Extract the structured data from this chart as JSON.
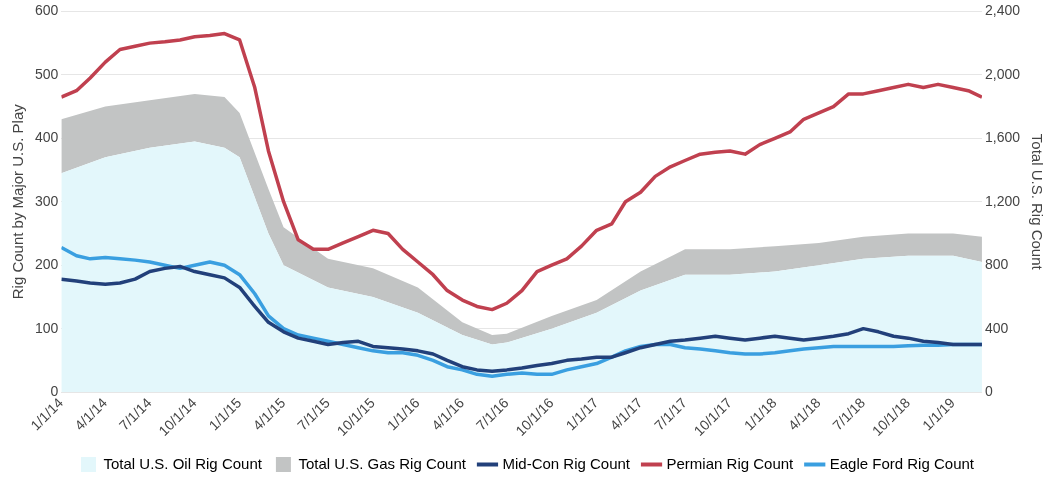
{
  "chart_data": {
    "type": "line",
    "ylabel": "Rig Count by Major U.S. Play",
    "y2label": "Total U.S. Rig Count",
    "x": [
      "2014-01-01",
      "2014-02-01",
      "2014-03-01",
      "2014-04-01",
      "2014-05-01",
      "2014-06-01",
      "2014-07-01",
      "2014-08-01",
      "2014-09-01",
      "2014-10-01",
      "2014-11-01",
      "2014-12-01",
      "2015-01-01",
      "2015-02-01",
      "2015-03-01",
      "2015-04-01",
      "2015-05-01",
      "2015-06-01",
      "2015-07-01",
      "2015-08-01",
      "2015-09-01",
      "2015-10-01",
      "2015-11-01",
      "2015-12-01",
      "2016-01-01",
      "2016-02-01",
      "2016-03-01",
      "2016-04-01",
      "2016-05-01",
      "2016-06-01",
      "2016-07-01",
      "2016-08-01",
      "2016-09-01",
      "2016-10-01",
      "2016-11-01",
      "2016-12-01",
      "2017-01-01",
      "2017-02-01",
      "2017-03-01",
      "2017-04-01",
      "2017-05-01",
      "2017-06-01",
      "2017-07-01",
      "2017-08-01",
      "2017-09-01",
      "2017-10-01",
      "2017-11-01",
      "2017-12-01",
      "2018-01-01",
      "2018-02-01",
      "2018-03-01",
      "2018-04-01",
      "2018-05-01",
      "2018-06-01",
      "2018-07-01",
      "2018-08-01",
      "2018-09-01",
      "2018-10-01",
      "2018-11-01",
      "2018-12-01",
      "2019-01-01",
      "2019-02-01",
      "2019-03-01"
    ],
    "series": [
      {
        "name": "Total U.S. Oil Rig Count",
        "type": "area",
        "axis": "y2",
        "color": "#e3f7fb",
        "x": [
          "2014-01-01",
          "2014-04-01",
          "2014-07-01",
          "2014-10-01",
          "2014-12-01",
          "2015-01-01",
          "2015-03-01",
          "2015-04-01",
          "2015-07-01",
          "2015-10-01",
          "2016-01-01",
          "2016-04-01",
          "2016-06-01",
          "2016-07-01",
          "2016-10-01",
          "2017-01-01",
          "2017-04-01",
          "2017-07-01",
          "2017-10-01",
          "2018-01-01",
          "2018-04-01",
          "2018-07-01",
          "2018-10-01",
          "2019-01-01",
          "2019-03-01"
        ],
        "values": [
          1380,
          1480,
          1540,
          1580,
          1540,
          1480,
          1000,
          800,
          660,
          600,
          500,
          360,
          300,
          312,
          400,
          500,
          640,
          740,
          740,
          760,
          800,
          840,
          860,
          860,
          820
        ]
      },
      {
        "name": "Total U.S. Gas Rig Count",
        "type": "area",
        "axis": "y2",
        "color": "#c2c4c4",
        "x": [
          "2014-01-01",
          "2014-04-01",
          "2014-07-01",
          "2014-10-01",
          "2014-12-01",
          "2015-01-01",
          "2015-03-01",
          "2015-04-01",
          "2015-07-01",
          "2015-10-01",
          "2016-01-01",
          "2016-04-01",
          "2016-06-01",
          "2016-07-01",
          "2016-10-01",
          "2017-01-01",
          "2017-04-01",
          "2017-07-01",
          "2017-10-01",
          "2018-01-01",
          "2018-04-01",
          "2018-07-01",
          "2018-10-01",
          "2019-01-01",
          "2019-03-01"
        ],
        "values": [
          340,
          320,
          300,
          300,
          320,
          280,
          280,
          240,
          180,
          180,
          160,
          80,
          60,
          56,
          80,
          80,
          120,
          160,
          160,
          160,
          140,
          140,
          140,
          140,
          160
        ]
      },
      {
        "name": "Mid-Con Rig Count",
        "type": "line",
        "color": "#22407a",
        "values": [
          178,
          175,
          172,
          170,
          172,
          178,
          190,
          195,
          198,
          190,
          185,
          180,
          165,
          135,
          110,
          95,
          85,
          80,
          75,
          78,
          80,
          72,
          70,
          68,
          65,
          60,
          50,
          40,
          35,
          33,
          35,
          38,
          42,
          45,
          50,
          52,
          55,
          55,
          62,
          70,
          75,
          80,
          82,
          85,
          88,
          85,
          82,
          85,
          88,
          85,
          82,
          85,
          88,
          92,
          100,
          95,
          88,
          85,
          80,
          78,
          75,
          75,
          75
        ]
      },
      {
        "name": "Permian Rig Count",
        "type": "line",
        "color": "#c0404f",
        "values": [
          465,
          475,
          495,
          520,
          540,
          545,
          550,
          552,
          555,
          560,
          562,
          565,
          555,
          480,
          380,
          300,
          240,
          225,
          225,
          235,
          245,
          255,
          250,
          225,
          205,
          185,
          160,
          145,
          135,
          130,
          140,
          160,
          190,
          200,
          210,
          230,
          255,
          265,
          300,
          315,
          340,
          355,
          365,
          375,
          378,
          380,
          375,
          390,
          400,
          410,
          430,
          440,
          450,
          470,
          470,
          475,
          480,
          485,
          480,
          485,
          480,
          475,
          465
        ]
      },
      {
        "name": "Eagle Ford Rig Count",
        "type": "line",
        "color": "#3a9fe0",
        "values": [
          228,
          215,
          210,
          212,
          210,
          208,
          205,
          200,
          195,
          200,
          205,
          200,
          185,
          155,
          120,
          100,
          90,
          85,
          80,
          75,
          70,
          65,
          62,
          62,
          58,
          50,
          40,
          35,
          28,
          25,
          28,
          30,
          28,
          28,
          35,
          40,
          45,
          55,
          65,
          72,
          75,
          75,
          70,
          68,
          65,
          62,
          60,
          60,
          62,
          65,
          68,
          70,
          72,
          72,
          72,
          72,
          72,
          73,
          74,
          74,
          75,
          75,
          75
        ]
      }
    ],
    "stacked": true,
    "xlim": [
      "2014-01-01",
      "2019-03-01"
    ],
    "xticks": [
      {
        "value": "2014-01-01",
        "label": "1/1/14"
      },
      {
        "value": "2014-04-01",
        "label": "4/1/14"
      },
      {
        "value": "2014-07-01",
        "label": "7/1/14"
      },
      {
        "value": "2014-10-01",
        "label": "10/1/14"
      },
      {
        "value": "2015-01-01",
        "label": "1/1/15"
      },
      {
        "value": "2015-04-01",
        "label": "4/1/15"
      },
      {
        "value": "2015-07-01",
        "label": "7/1/15"
      },
      {
        "value": "2015-10-01",
        "label": "10/1/15"
      },
      {
        "value": "2016-01-01",
        "label": "1/1/16"
      },
      {
        "value": "2016-04-01",
        "label": "4/1/16"
      },
      {
        "value": "2016-07-01",
        "label": "7/1/16"
      },
      {
        "value": "2016-10-01",
        "label": "10/1/16"
      },
      {
        "value": "2017-01-01",
        "label": "1/1/17"
      },
      {
        "value": "2017-04-01",
        "label": "4/1/17"
      },
      {
        "value": "2017-07-01",
        "label": "7/1/17"
      },
      {
        "value": "2017-10-01",
        "label": "10/1/17"
      },
      {
        "value": "2018-01-01",
        "label": "1/1/18"
      },
      {
        "value": "2018-04-01",
        "label": "4/1/18"
      },
      {
        "value": "2018-07-01",
        "label": "7/1/18"
      },
      {
        "value": "2018-10-01",
        "label": "10/1/18"
      },
      {
        "value": "2019-01-01",
        "label": "1/1/19"
      }
    ],
    "ylim": [
      0,
      600
    ],
    "yticks": [
      0,
      100,
      200,
      300,
      400,
      500,
      600
    ],
    "y2lim": [
      0,
      2400
    ],
    "y2ticks": [
      0,
      {
        "value": 400,
        "label": "400"
      },
      {
        "value": 800,
        "label": "800"
      },
      {
        "value": 1200,
        "label": "1,200"
      },
      {
        "value": 1600,
        "label": "1,600"
      },
      {
        "value": 2000,
        "label": "2,000"
      },
      {
        "value": 2400,
        "label": "2,400"
      }
    ],
    "grid": "y",
    "legend": "bottom",
    "marker": "none",
    "line_style": "solid"
  }
}
